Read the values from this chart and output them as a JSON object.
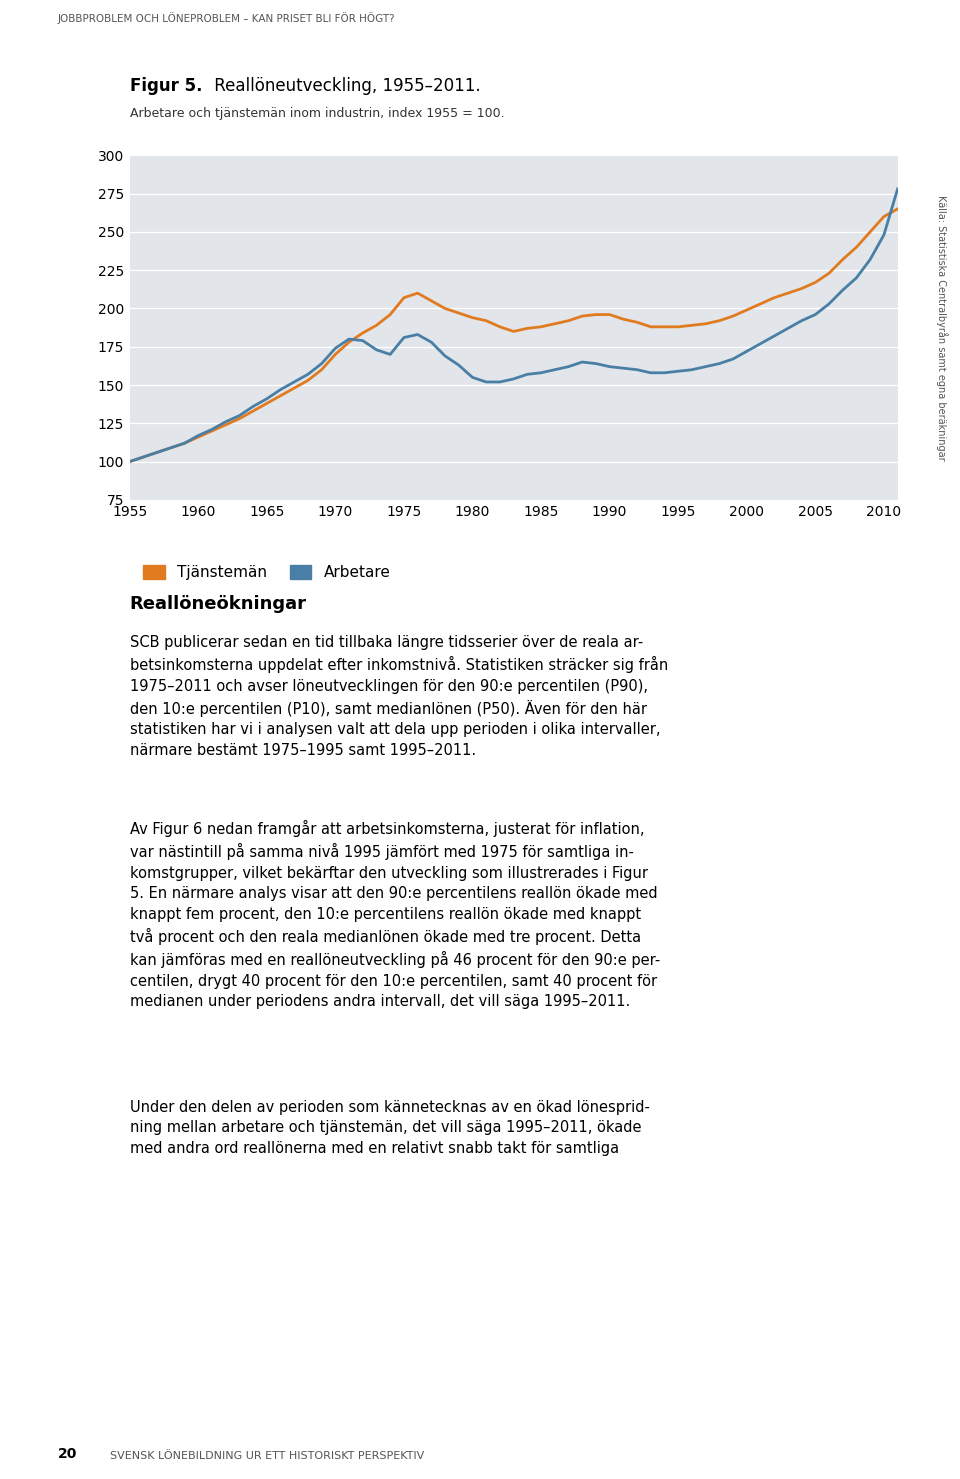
{
  "title_bold": "Figur 5.",
  "title_regular": " Reallöneutveckling, 1955–2011.",
  "subtitle": "Arbetare och tjänstemän inom industrin, index 1955 = 100.",
  "source_text": "Källa: Statistiska Centralbyrån samt egna beräkningar",
  "legend_tjansteman": "Tjänstemän",
  "legend_arbetare": "Arbetare",
  "background_color": "#e2e5ea",
  "line_tjansteman_color": "#e07b20",
  "line_arbetare_color": "#4a7fa5",
  "ylim": [
    75,
    300
  ],
  "yticks": [
    75,
    100,
    125,
    150,
    175,
    200,
    225,
    250,
    275,
    300
  ],
  "years": [
    1955,
    1956,
    1957,
    1958,
    1959,
    1960,
    1961,
    1962,
    1963,
    1964,
    1965,
    1966,
    1967,
    1968,
    1969,
    1970,
    1971,
    1972,
    1973,
    1974,
    1975,
    1976,
    1977,
    1978,
    1979,
    1980,
    1981,
    1982,
    1983,
    1984,
    1985,
    1986,
    1987,
    1988,
    1989,
    1990,
    1991,
    1992,
    1993,
    1994,
    1995,
    1996,
    1997,
    1998,
    1999,
    2000,
    2001,
    2002,
    2003,
    2004,
    2005,
    2006,
    2007,
    2008,
    2009,
    2010,
    2011
  ],
  "tjansteman": [
    100,
    103,
    106,
    109,
    112,
    116,
    120,
    124,
    128,
    133,
    138,
    143,
    148,
    153,
    160,
    170,
    178,
    184,
    189,
    196,
    207,
    210,
    205,
    200,
    197,
    194,
    192,
    188,
    185,
    187,
    188,
    190,
    192,
    195,
    196,
    196,
    193,
    191,
    188,
    188,
    188,
    189,
    190,
    192,
    195,
    199,
    203,
    207,
    210,
    213,
    217,
    223,
    232,
    240,
    250,
    260,
    265
  ],
  "arbetare": [
    100,
    103,
    106,
    109,
    112,
    117,
    121,
    126,
    130,
    136,
    141,
    147,
    152,
    157,
    164,
    174,
    180,
    179,
    173,
    170,
    181,
    183,
    178,
    169,
    163,
    155,
    152,
    152,
    154,
    157,
    158,
    160,
    162,
    165,
    164,
    162,
    161,
    160,
    158,
    158,
    159,
    160,
    162,
    164,
    167,
    172,
    177,
    182,
    187,
    192,
    196,
    203,
    212,
    220,
    232,
    248,
    278
  ],
  "xticks": [
    1955,
    1960,
    1965,
    1970,
    1975,
    1980,
    1985,
    1990,
    1995,
    2000,
    2005,
    2010
  ],
  "xlim": [
    1955,
    2011
  ],
  "header": "JOBBPROBLEM OCH LÖNEPROBLEM – KAN PRISET BLI FÖR HÖGT?",
  "footer_num": "20",
  "footer_text": "SVENSK LÖNEBILDNING UR ETT HISTORISKT PERSPEKTIV",
  "para1_heading": "Reallöneökningar",
  "para1": "SCB publicerar sedan en tid tillbaka längre tidsserier över de reala ar-\nbetsinkomsterna uppdelat efter inkomstnivå. Statistiken sträcker sig från\n1975–2011 och avser löneutvecklingen för den 90:e percentilen (P90),\nden 10:e percentilen (P10), samt medianlönen (P50). Även för den här\nstatistiken har vi i analysen valt att dela upp perioden i olika intervaller,\nnärmare bestämt 1975–1995 samt 1995–2011.",
  "para2": "Av Figur 6 nedan framgår att arbetsinkomsterna, justerat för inflation,\nvar nästintill på samma nivå 1995 jämfört med 1975 för samtliga in-\nkomstgrupper, vilket bekärftar den utveckling som illustrerades i Figur\n5. En närmare analys visar att den 90:e percentilens reallön ökade med\nknappt fem procent, den 10:e percentilens reallön ökade med knappt\ntvå procent och den reala medianlönen ökade med tre procent. Detta\nkan jämföras med en reallöneutveckling på 46 procent för den 90:e per-\ncentilen, drygt 40 procent för den 10:e percentilen, samt 40 procent för\nmedianen under periodens andra intervall, det vill säga 1995–2011.",
  "para3": "Under den delen av perioden som kännetecknas av en ökad lönesprid-\nning mellan arbetare och tjänstemän, det vill säga 1995–2011, ökade\nmed andra ord reallönerna med en relativt snabb takt för samtliga"
}
